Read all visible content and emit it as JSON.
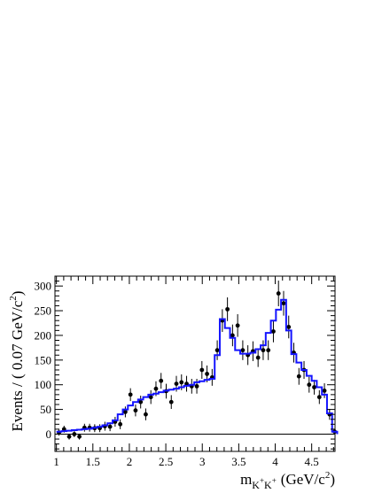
{
  "chart_data": {
    "type": "histogram-with-points",
    "xlabel": {
      "base": "m",
      "subscript_parts": [
        {
          "text": "K",
          "sup": "+"
        },
        {
          "text": "K",
          "sup": "+"
        }
      ],
      "units": "(GeV/c",
      "units_sup": "2",
      "units_close": ")"
    },
    "ylabel": {
      "text": "Events / ( 0.07 GeV/c",
      "sup": "2",
      "close": ")"
    },
    "xlim": [
      0.98,
      4.82
    ],
    "ylim": [
      -35,
      320
    ],
    "x_ticks": [
      1,
      1.5,
      2,
      2.5,
      3,
      3.5,
      4,
      4.5
    ],
    "x_tick_labels": [
      "1",
      "1.5",
      "2",
      "2.5",
      "3",
      "3.5",
      "4",
      "4.5"
    ],
    "y_ticks": [
      0,
      50,
      100,
      150,
      200,
      250,
      300
    ],
    "y_tick_labels": [
      "0",
      "50",
      "100",
      "150",
      "200",
      "250",
      "300"
    ],
    "zero_line": true,
    "grid": false,
    "series": [
      {
        "kind": "data_points",
        "color": "#000000",
        "x": [
          1.035,
          1.105,
          1.175,
          1.245,
          1.315,
          1.385,
          1.455,
          1.525,
          1.595,
          1.665,
          1.735,
          1.805,
          1.875,
          1.945,
          2.015,
          2.085,
          2.155,
          2.225,
          2.295,
          2.365,
          2.435,
          2.505,
          2.575,
          2.645,
          2.715,
          2.785,
          2.855,
          2.925,
          2.995,
          3.065,
          3.135,
          3.205,
          3.275,
          3.345,
          3.415,
          3.485,
          3.555,
          3.625,
          3.695,
          3.765,
          3.835,
          3.905,
          3.975,
          4.045,
          4.115,
          4.185,
          4.255,
          4.325,
          4.395,
          4.465,
          4.535,
          4.605,
          4.675,
          4.745,
          4.815
        ],
        "y": [
          3,
          10,
          -5,
          0,
          -5,
          13,
          13,
          12,
          12,
          16,
          15,
          25,
          20,
          45,
          80,
          48,
          65,
          40,
          75,
          92,
          108,
          87,
          65,
          102,
          105,
          102,
          97,
          97,
          130,
          122,
          115,
          170,
          230,
          253,
          200,
          220,
          170,
          160,
          168,
          155,
          170,
          170,
          208,
          285,
          265,
          217,
          165,
          117,
          130,
          100,
          95,
          75,
          88,
          40,
          5
        ],
        "err": [
          6,
          7,
          6,
          6,
          6,
          8,
          8,
          8,
          8,
          9,
          9,
          10,
          10,
          11,
          13,
          12,
          13,
          12,
          14,
          15,
          16,
          15,
          14,
          16,
          16,
          16,
          15,
          15,
          18,
          17,
          17,
          20,
          23,
          24,
          22,
          23,
          20,
          20,
          20,
          19,
          20,
          20,
          22,
          26,
          25,
          23,
          20,
          17,
          18,
          16,
          15,
          14,
          15,
          11,
          5
        ]
      },
      {
        "kind": "fit_histogram",
        "color": "#1414ff",
        "bin_width": 0.07,
        "x": [
          1.035,
          1.105,
          1.175,
          1.245,
          1.315,
          1.385,
          1.455,
          1.525,
          1.595,
          1.665,
          1.735,
          1.805,
          1.875,
          1.945,
          2.015,
          2.085,
          2.155,
          2.225,
          2.295,
          2.365,
          2.435,
          2.505,
          2.575,
          2.645,
          2.715,
          2.785,
          2.855,
          2.925,
          2.995,
          3.065,
          3.135,
          3.205,
          3.275,
          3.345,
          3.415,
          3.485,
          3.555,
          3.625,
          3.695,
          3.765,
          3.835,
          3.905,
          3.975,
          4.045,
          4.115,
          4.185,
          4.255,
          4.325,
          4.395,
          4.465,
          4.535,
          4.605,
          4.675,
          4.745,
          4.815
        ],
        "y": [
          5,
          6,
          7,
          8,
          9,
          10,
          11,
          13,
          15,
          18,
          22,
          28,
          40,
          50,
          58,
          65,
          70,
          75,
          80,
          82,
          85,
          88,
          90,
          92,
          95,
          98,
          100,
          105,
          107,
          110,
          112,
          160,
          233,
          215,
          195,
          170,
          163,
          163,
          165,
          172,
          180,
          205,
          230,
          252,
          272,
          210,
          162,
          145,
          130,
          118,
          108,
          95,
          80,
          42,
          5
        ]
      }
    ]
  }
}
